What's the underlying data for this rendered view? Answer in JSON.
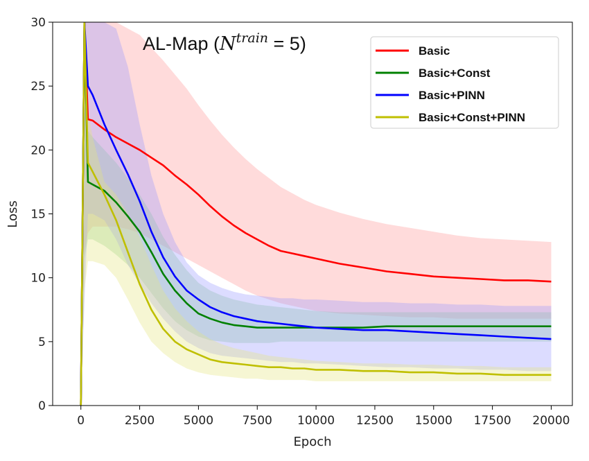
{
  "chart_data": {
    "type": "line",
    "title_prefix": "AL-Map (",
    "title_math_base": "N",
    "title_math_sup": "train",
    "title_math_rest": " = 5)",
    "xlabel": "Epoch",
    "ylabel": "Loss",
    "xlim": [
      -1200,
      20900
    ],
    "ylim": [
      0,
      30
    ],
    "xticks": [
      0,
      2500,
      5000,
      7500,
      10000,
      12500,
      15000,
      17500,
      20000
    ],
    "yticks": [
      0,
      5,
      10,
      15,
      20,
      25,
      30
    ],
    "legend_position": "top-right",
    "series": [
      {
        "name": "Basic",
        "color": "#ff0000",
        "band_color": "#ff9999",
        "x": [
          0,
          150,
          300,
          500,
          1000,
          1500,
          2000,
          2500,
          3000,
          3500,
          4000,
          4500,
          5000,
          5500,
          6000,
          6500,
          7000,
          7500,
          8000,
          8500,
          9000,
          9500,
          10000,
          11000,
          12000,
          13000,
          14000,
          15000,
          16000,
          17000,
          18000,
          19000,
          20000
        ],
        "mean": [
          0,
          30,
          22.4,
          22.3,
          21.6,
          21.0,
          20.5,
          20.0,
          19.4,
          18.8,
          18.0,
          17.3,
          16.5,
          15.6,
          14.8,
          14.1,
          13.5,
          13.0,
          12.5,
          12.1,
          11.9,
          11.7,
          11.5,
          11.1,
          10.8,
          10.5,
          10.3,
          10.1,
          10.0,
          9.9,
          9.8,
          9.8,
          9.7
        ],
        "upper": [
          0,
          30,
          30,
          30,
          30,
          30,
          29.5,
          29.0,
          28.0,
          27.0,
          25.9,
          24.8,
          23.5,
          22.3,
          21.2,
          20.2,
          19.3,
          18.5,
          17.8,
          17.1,
          16.6,
          16.1,
          15.7,
          15.1,
          14.6,
          14.2,
          13.9,
          13.6,
          13.3,
          13.1,
          13.0,
          12.9,
          12.8
        ],
        "lower": [
          0,
          12.0,
          13.5,
          14.0,
          14.0,
          14.0,
          13.8,
          13.5,
          13.0,
          12.5,
          12.0,
          11.5,
          11.0,
          10.5,
          10.0,
          9.5,
          9.0,
          8.6,
          8.3,
          8.0,
          7.8,
          7.6,
          7.4,
          7.2,
          7.1,
          7.0,
          6.9,
          6.9,
          6.8,
          6.8,
          6.8,
          6.8,
          6.8
        ]
      },
      {
        "name": "Basic+Const",
        "color": "#008000",
        "band_color": "#90d090",
        "x": [
          0,
          150,
          300,
          500,
          1000,
          1500,
          2000,
          2500,
          3000,
          3500,
          4000,
          4500,
          5000,
          5500,
          6000,
          6500,
          7000,
          7500,
          8000,
          8500,
          9000,
          9500,
          10000,
          11000,
          12000,
          13000,
          14000,
          15000,
          16000,
          17000,
          18000,
          19000,
          20000
        ],
        "mean": [
          0,
          30,
          17.5,
          17.3,
          16.8,
          15.9,
          14.8,
          13.6,
          12.0,
          10.3,
          9.0,
          8.0,
          7.2,
          6.8,
          6.5,
          6.3,
          6.2,
          6.1,
          6.1,
          6.1,
          6.1,
          6.1,
          6.1,
          6.1,
          6.1,
          6.2,
          6.2,
          6.2,
          6.2,
          6.2,
          6.2,
          6.2,
          6.2
        ],
        "upper": [
          0,
          30,
          21.5,
          21.0,
          20.0,
          19.0,
          17.8,
          16.5,
          15.0,
          13.2,
          11.8,
          10.6,
          9.6,
          9.0,
          8.6,
          8.3,
          8.1,
          7.9,
          7.8,
          7.7,
          7.6,
          7.5,
          7.4,
          7.3,
          7.3,
          7.3,
          7.3,
          7.3,
          7.3,
          7.3,
          7.3,
          7.3,
          7.3
        ],
        "lower": [
          0,
          11.5,
          13.0,
          13.0,
          12.5,
          11.8,
          11.0,
          10.0,
          8.8,
          7.6,
          6.6,
          5.9,
          5.4,
          5.1,
          5.0,
          4.9,
          4.9,
          4.9,
          4.9,
          5.0,
          5.0,
          5.0,
          5.0,
          5.0,
          5.0,
          5.0,
          5.0,
          5.0,
          5.0,
          5.0,
          5.0,
          5.0,
          5.0
        ]
      },
      {
        "name": "Basic+PINN",
        "color": "#0000ff",
        "band_color": "#9a9aff",
        "x": [
          0,
          150,
          300,
          500,
          1000,
          1500,
          2000,
          2500,
          3000,
          3500,
          4000,
          4500,
          5000,
          5500,
          6000,
          6500,
          7000,
          7500,
          8000,
          8500,
          9000,
          9500,
          10000,
          11000,
          12000,
          13000,
          14000,
          15000,
          16000,
          17000,
          18000,
          19000,
          20000
        ],
        "mean": [
          0,
          30,
          25.0,
          24.3,
          22.0,
          20.0,
          18.1,
          16.0,
          13.6,
          11.6,
          10.1,
          9.0,
          8.3,
          7.7,
          7.3,
          7.0,
          6.8,
          6.6,
          6.5,
          6.4,
          6.3,
          6.2,
          6.1,
          6.0,
          5.9,
          5.9,
          5.8,
          5.7,
          5.6,
          5.5,
          5.4,
          5.3,
          5.2
        ],
        "upper": [
          0,
          30,
          30,
          30,
          30,
          29.5,
          26.5,
          22.0,
          18.0,
          15.0,
          12.8,
          11.2,
          10.2,
          9.6,
          9.2,
          8.9,
          8.7,
          8.6,
          8.5,
          8.4,
          8.4,
          8.3,
          8.3,
          8.2,
          8.1,
          8.1,
          8.0,
          8.0,
          7.9,
          7.9,
          7.8,
          7.8,
          7.8
        ],
        "lower": [
          0,
          8.0,
          15.0,
          15.0,
          14.5,
          13.0,
          11.0,
          9.5,
          8.0,
          6.8,
          5.8,
          5.0,
          4.5,
          4.1,
          3.9,
          3.8,
          3.7,
          3.6,
          3.5,
          3.4,
          3.4,
          3.3,
          3.3,
          3.2,
          3.1,
          3.0,
          3.0,
          2.9,
          2.9,
          2.8,
          2.8,
          2.7,
          2.7
        ]
      },
      {
        "name": "Basic+Const+PINN",
        "color": "#bfbf00",
        "band_color": "#e6e680",
        "x": [
          0,
          150,
          300,
          500,
          1000,
          1500,
          2000,
          2500,
          3000,
          3500,
          4000,
          4500,
          5000,
          5500,
          6000,
          6500,
          7000,
          7500,
          8000,
          8500,
          9000,
          9500,
          10000,
          11000,
          12000,
          13000,
          14000,
          15000,
          16000,
          17000,
          18000,
          19000,
          20000
        ],
        "mean": [
          0,
          30,
          19.0,
          18.3,
          16.5,
          14.5,
          12.0,
          9.5,
          7.5,
          6.0,
          5.0,
          4.4,
          4.0,
          3.6,
          3.4,
          3.3,
          3.2,
          3.1,
          3.0,
          3.0,
          2.9,
          2.9,
          2.8,
          2.8,
          2.7,
          2.7,
          2.6,
          2.6,
          2.5,
          2.5,
          2.4,
          2.4,
          2.4
        ],
        "upper": [
          0,
          30,
          23.0,
          21.0,
          17.5,
          16.5,
          15.0,
          13.2,
          11.0,
          9.0,
          7.6,
          6.6,
          5.8,
          5.2,
          4.8,
          4.5,
          4.3,
          4.1,
          3.9,
          3.8,
          3.7,
          3.6,
          3.5,
          3.4,
          3.3,
          3.3,
          3.2,
          3.2,
          3.1,
          3.1,
          3.0,
          3.0,
          3.0
        ],
        "lower": [
          0,
          9.0,
          11.3,
          11.3,
          11.0,
          10.0,
          8.3,
          6.5,
          5.0,
          4.1,
          3.4,
          2.9,
          2.6,
          2.4,
          2.3,
          2.2,
          2.1,
          2.1,
          2.0,
          2.0,
          2.0,
          2.0,
          1.9,
          1.9,
          1.9,
          1.9,
          1.9,
          1.9,
          1.9,
          1.9,
          1.9,
          1.9,
          1.9
        ]
      }
    ]
  }
}
